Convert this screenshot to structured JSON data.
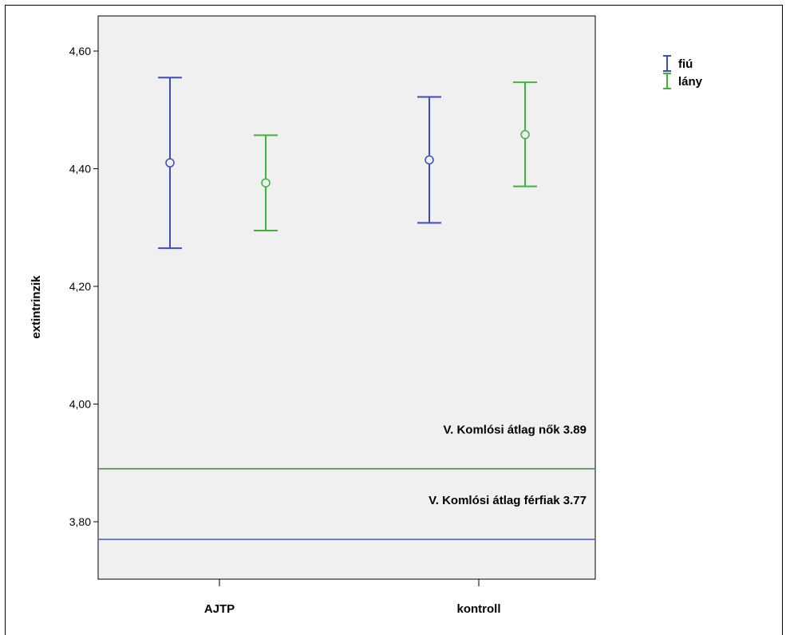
{
  "chart_data": {
    "type": "errorbar",
    "ylabel": "extintrinzik",
    "ylim": [
      3.7,
      4.65
    ],
    "yticks": [
      3.8,
      4.0,
      4.2,
      4.4,
      4.6
    ],
    "ytick_labels": [
      "3,80",
      "4,00",
      "4,20",
      "4,40",
      "4,60"
    ],
    "categories": [
      "AJTP",
      "kontroll"
    ],
    "legend_position": "top-right",
    "series": [
      {
        "name": "fiú",
        "color": "#3c4cc0",
        "points": [
          {
            "category": "AJTP",
            "mean": 4.41,
            "lower": 4.265,
            "upper": 4.555
          },
          {
            "category": "kontroll",
            "mean": 4.415,
            "lower": 4.308,
            "upper": 4.522
          }
        ]
      },
      {
        "name": "lány",
        "color": "#3db53d",
        "points": [
          {
            "category": "AJTP",
            "mean": 4.376,
            "lower": 4.295,
            "upper": 4.457
          },
          {
            "category": "kontroll",
            "mean": 4.458,
            "lower": 4.37,
            "upper": 4.547
          }
        ]
      }
    ],
    "reference_lines": [
      {
        "value": 3.89,
        "color": "#2e8b3e",
        "label": "V. Komlósi átlag nők 3.89"
      },
      {
        "value": 3.77,
        "color": "#4a5ed0",
        "label": "V. Komlósi átlag férfiak 3.77"
      }
    ],
    "plot_background": "#f0f0f0"
  }
}
